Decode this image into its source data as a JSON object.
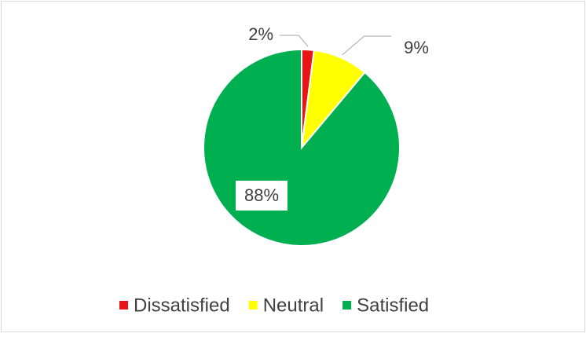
{
  "chart_data": {
    "type": "pie",
    "categories": [
      "Dissatisfied",
      "Neutral",
      "Satisfied"
    ],
    "values": [
      2,
      9,
      88
    ],
    "value_labels": [
      "2%",
      "9%",
      "88%"
    ],
    "colors": [
      "#e81416",
      "#ffff00",
      "#00b050"
    ],
    "legend": "bottom"
  }
}
